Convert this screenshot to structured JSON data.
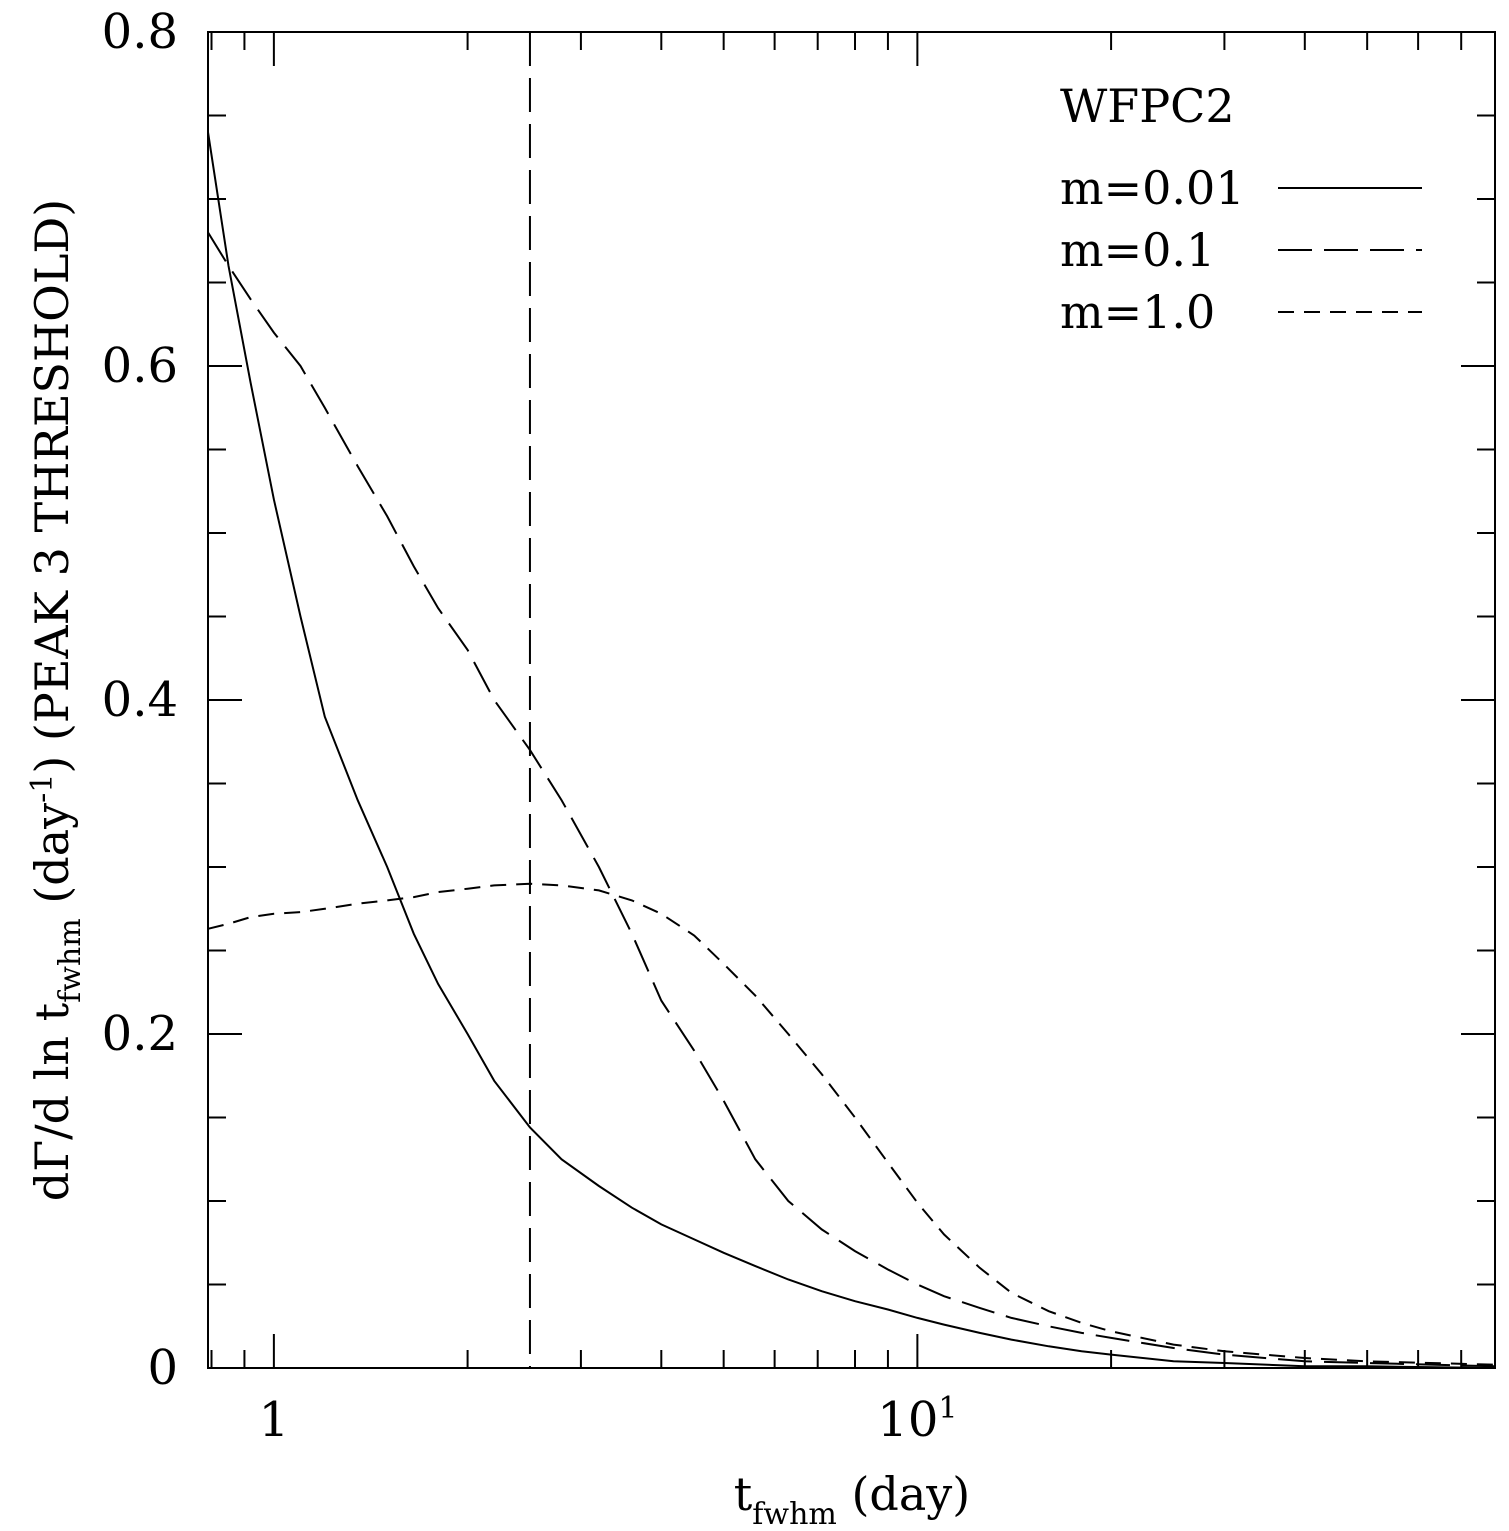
{
  "chart_data": {
    "type": "line",
    "xscale": "log",
    "xlim": [
      0.79,
      79
    ],
    "ylim": [
      0,
      0.8
    ],
    "grid": false,
    "legend_position": "top-right",
    "legend_title": "WFPC2",
    "xlabel": {
      "main": "t",
      "sub": "fwhm",
      "rest": " (day)"
    },
    "ylabel": {
      "pre": "dΓ/d ln t",
      "sub": "fwhm",
      "mid": " (day",
      "sup": "-1",
      "post": ") (PEAK 3 THRESHOLD)"
    },
    "x_tick_labels": [
      {
        "value": 1,
        "text": "1",
        "exp": ""
      },
      {
        "value": 10,
        "text": "10",
        "exp": "1"
      }
    ],
    "y_tick_labels": [
      {
        "value": 0,
        "text": "0"
      },
      {
        "value": 0.2,
        "text": "0.2"
      },
      {
        "value": 0.4,
        "text": "0.4"
      },
      {
        "value": 0.6,
        "text": "0.6"
      },
      {
        "value": 0.8,
        "text": "0.8"
      }
    ],
    "reference_lines": [
      {
        "axis": "x",
        "value": 2.5,
        "style": "long-dash"
      }
    ],
    "series": [
      {
        "name": "m=0.01",
        "style": "solid",
        "x": [
          0.79,
          0.85,
          0.92,
          1.0,
          1.1,
          1.2,
          1.35,
          1.5,
          1.65,
          1.8,
          2.0,
          2.2,
          2.5,
          2.8,
          3.2,
          3.6,
          4.0,
          4.5,
          5.0,
          5.6,
          6.3,
          7.1,
          8.0,
          9.0,
          10,
          11,
          12.5,
          14,
          16,
          18,
          20,
          25,
          30,
          40,
          50,
          79
        ],
        "y": [
          0.74,
          0.66,
          0.59,
          0.52,
          0.45,
          0.39,
          0.34,
          0.3,
          0.26,
          0.23,
          0.2,
          0.172,
          0.144,
          0.125,
          0.109,
          0.096,
          0.086,
          0.077,
          0.069,
          0.061,
          0.053,
          0.046,
          0.04,
          0.035,
          0.03,
          0.026,
          0.021,
          0.017,
          0.013,
          0.01,
          0.008,
          0.004,
          0.003,
          0.001,
          0.001,
          0.0
        ]
      },
      {
        "name": "m=0.1",
        "style": "long-dash",
        "x": [
          0.79,
          0.85,
          0.92,
          1.0,
          1.1,
          1.2,
          1.35,
          1.5,
          1.65,
          1.8,
          2.0,
          2.2,
          2.5,
          2.8,
          3.2,
          3.6,
          4.0,
          4.5,
          5.0,
          5.6,
          6.3,
          7.1,
          8.0,
          9.0,
          10,
          11,
          12.5,
          14,
          16,
          18,
          20,
          25,
          30,
          40,
          50,
          79
        ],
        "y": [
          0.68,
          0.66,
          0.64,
          0.62,
          0.6,
          0.575,
          0.54,
          0.51,
          0.48,
          0.455,
          0.43,
          0.4,
          0.37,
          0.34,
          0.3,
          0.26,
          0.22,
          0.19,
          0.16,
          0.125,
          0.1,
          0.083,
          0.07,
          0.059,
          0.05,
          0.043,
          0.036,
          0.03,
          0.025,
          0.021,
          0.018,
          0.012,
          0.008,
          0.004,
          0.003,
          0.001
        ]
      },
      {
        "name": "m=1.0",
        "style": "short-dash",
        "x": [
          0.79,
          0.85,
          0.92,
          1.0,
          1.1,
          1.2,
          1.35,
          1.5,
          1.65,
          1.8,
          2.0,
          2.2,
          2.5,
          2.8,
          3.2,
          3.6,
          4.0,
          4.5,
          5.0,
          5.6,
          6.3,
          7.1,
          8.0,
          9.0,
          10,
          11,
          12.5,
          14,
          16,
          18,
          20,
          25,
          30,
          40,
          50,
          79
        ],
        "y": [
          0.263,
          0.266,
          0.27,
          0.272,
          0.273,
          0.275,
          0.278,
          0.28,
          0.282,
          0.285,
          0.287,
          0.289,
          0.29,
          0.289,
          0.286,
          0.28,
          0.272,
          0.259,
          0.242,
          0.223,
          0.2,
          0.176,
          0.15,
          0.123,
          0.099,
          0.08,
          0.06,
          0.045,
          0.034,
          0.027,
          0.022,
          0.014,
          0.01,
          0.006,
          0.004,
          0.002
        ]
      }
    ]
  }
}
